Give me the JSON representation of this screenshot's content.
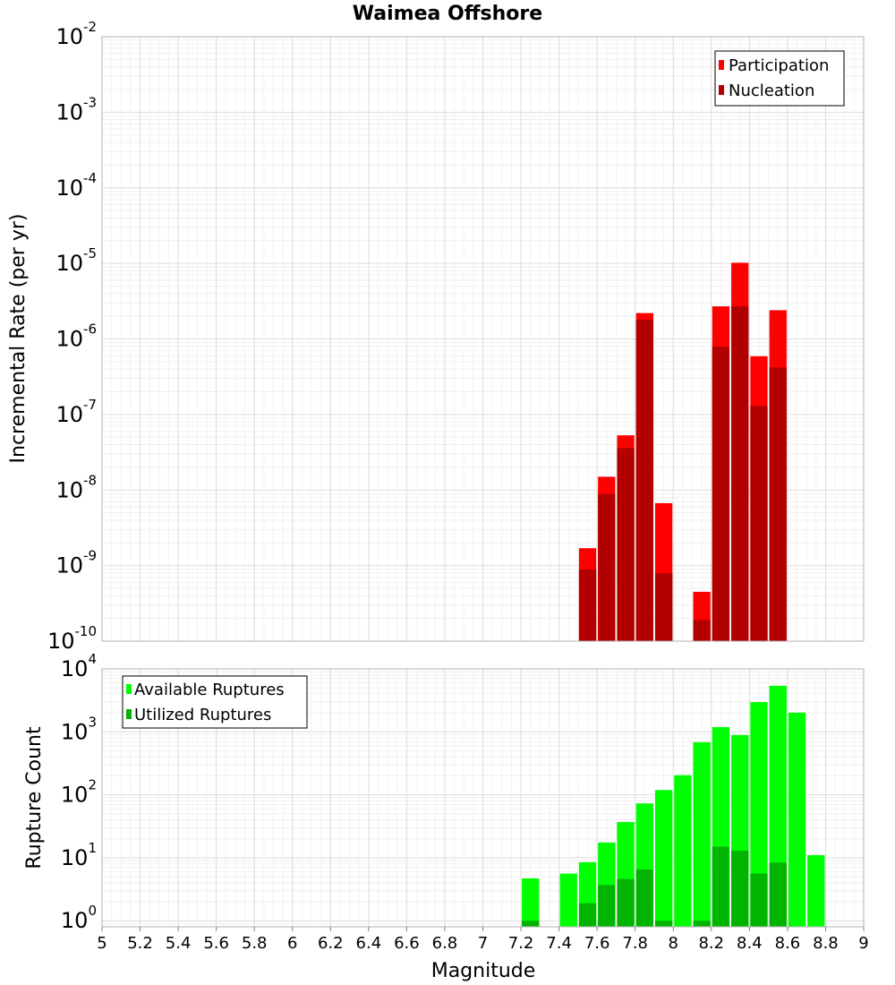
{
  "chart_data": [
    {
      "type": "bar",
      "title": "Waimea Offshore",
      "ylabel": "Incremental Rate (per yr)",
      "yscale": "log",
      "ylim": [
        1e-10,
        0.01
      ],
      "xlim": [
        5,
        9
      ],
      "ytick_base": "10",
      "yticks": [
        {
          "value": 0.01,
          "exp": "-2"
        },
        {
          "value": 0.001,
          "exp": "-3"
        },
        {
          "value": 0.0001,
          "exp": "-4"
        },
        {
          "value": 1e-05,
          "exp": "-5"
        },
        {
          "value": 1e-06,
          "exp": "-6"
        },
        {
          "value": 1e-07,
          "exp": "-7"
        },
        {
          "value": 1e-08,
          "exp": "-8"
        },
        {
          "value": 1e-09,
          "exp": "-9"
        },
        {
          "value": 1e-10,
          "exp": "-10"
        }
      ],
      "grid": true,
      "legend_position": "top-right",
      "series": [
        {
          "name": "Participation",
          "color": "#ff0000",
          "x": [
            7.55,
            7.65,
            7.75,
            7.85,
            7.95,
            8.15,
            8.25,
            8.35,
            8.45,
            8.55
          ],
          "values": [
            1.7e-09,
            1.5e-08,
            5.3e-08,
            2.2e-06,
            6.7e-09,
            4.5e-10,
            2.7e-06,
            1.02e-05,
            5.9e-07,
            2.4e-06
          ]
        },
        {
          "name": "Nucleation",
          "color": "#b20000",
          "x": [
            7.55,
            7.65,
            7.75,
            7.85,
            7.95,
            8.15,
            8.25,
            8.35,
            8.45,
            8.55
          ],
          "values": [
            8.9e-10,
            8.9e-09,
            3.6e-08,
            1.8e-06,
            7.9e-10,
            1.9e-10,
            7.9e-07,
            2.7e-06,
            1.3e-07,
            4.2e-07
          ]
        }
      ]
    },
    {
      "type": "bar",
      "ylabel": "Rupture Count",
      "xlabel": "Magnitude",
      "yscale": "log",
      "ylim": [
        0.8,
        10000
      ],
      "xlim": [
        5,
        9
      ],
      "ytick_base": "10",
      "yticks": [
        {
          "value": 1,
          "exp": "0"
        },
        {
          "value": 10,
          "exp": "1"
        },
        {
          "value": 100,
          "exp": "2"
        },
        {
          "value": 1000,
          "exp": "3"
        },
        {
          "value": 10000,
          "exp": "4"
        }
      ],
      "xticks": [
        "5",
        "5.2",
        "5.4",
        "5.6",
        "5.8",
        "6",
        "6.2",
        "6.4",
        "6.6",
        "6.8",
        "7",
        "7.2",
        "7.4",
        "7.6",
        "7.8",
        "8",
        "8.2",
        "8.4",
        "8.6",
        "8.8",
        "9"
      ],
      "grid": true,
      "legend_position": "top-left",
      "series": [
        {
          "name": "Available Ruptures",
          "color": "#00ff00",
          "x": [
            7.25,
            7.45,
            7.55,
            7.65,
            7.75,
            7.85,
            7.95,
            8.05,
            8.15,
            8.25,
            8.35,
            8.45,
            8.55,
            8.65,
            8.75
          ],
          "values": [
            4.7,
            5.6,
            8.5,
            17.5,
            37,
            73,
            119,
            205,
            685,
            1190,
            890,
            2970,
            5400,
            2020,
            11
          ]
        },
        {
          "name": "Utilized Ruptures",
          "color": "#00b400",
          "x": [
            7.25,
            7.55,
            7.65,
            7.75,
            7.85,
            7.95,
            8.15,
            8.25,
            8.35,
            8.45,
            8.55
          ],
          "values": [
            1,
            1.9,
            3.7,
            4.6,
            6.5,
            1,
            1,
            15,
            13,
            5.6,
            8.4
          ]
        }
      ]
    }
  ]
}
